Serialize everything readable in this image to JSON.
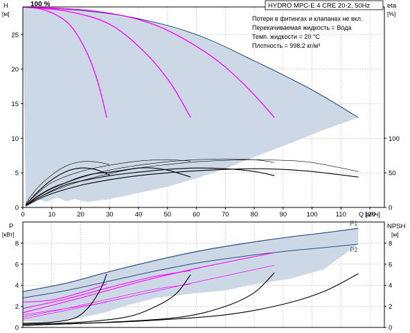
{
  "chart_data": [
    {
      "type": "line",
      "panel": "head-efficiency",
      "title": "HYDRO MPC-E 4 CRE 20-2, 50Hz",
      "notes": [
        "Потери в фитингах и клапанах не вкл.",
        "Перекачиваемая жидкость = Вода",
        "Темп. жидкости = 20 °C",
        "Плотность = 998.2 кг/м³"
      ],
      "speed_label": "100 %",
      "xlabel": "Q [м³/ч]",
      "ylabel_left": [
        "H",
        "[м]"
      ],
      "ylabel_right": [
        "eta",
        "[%]"
      ],
      "xlim": [
        0,
        125
      ],
      "ylim_left": [
        0,
        29
      ],
      "ylim_right": [
        0,
        290
      ],
      "x_ticks": [
        "0",
        "10",
        "20",
        "30",
        "40",
        "50",
        "60",
        "70",
        "80",
        "90",
        "100",
        "110",
        "120"
      ],
      "y_ticks_left": [
        "0",
        "5",
        "10",
        "15",
        "20",
        "25"
      ],
      "y_ticks_right": [
        "0",
        "50",
        "100"
      ],
      "grid": true,
      "envelope": {
        "upper": [
          [
            0,
            29
          ],
          [
            20,
            28.5
          ],
          [
            40,
            27.3
          ],
          [
            60,
            25
          ],
          [
            80,
            21.2
          ],
          [
            100,
            17
          ],
          [
            116,
            13
          ]
        ],
        "lower": [
          [
            116,
            13
          ],
          [
            104,
            11.2
          ],
          [
            92,
            9.2
          ],
          [
            80,
            7.3
          ],
          [
            70,
            5.6
          ],
          [
            60,
            4.2
          ],
          [
            50,
            3
          ],
          [
            40,
            2.1
          ],
          [
            30,
            1.2
          ],
          [
            22,
            0.8
          ],
          [
            18,
            1.2
          ],
          [
            15,
            0.9
          ],
          [
            12,
            1.4
          ],
          [
            8,
            0.8
          ],
          [
            5,
            1.3
          ],
          [
            1,
            0.4
          ],
          [
            0,
            29
          ]
        ]
      },
      "head_series": [
        {
          "values": [
            [
              0,
              29
            ],
            [
              8,
              28.5
            ],
            [
              16,
              26.5
            ],
            [
              22,
              22.5
            ],
            [
              26,
              18
            ],
            [
              29,
              13
            ]
          ]
        },
        {
          "values": [
            [
              0,
              29
            ],
            [
              15,
              28.4
            ],
            [
              30,
              26.5
            ],
            [
              42,
              22.5
            ],
            [
              51,
              18
            ],
            [
              58,
              13
            ]
          ]
        },
        {
          "values": [
            [
              0,
              29
            ],
            [
              25,
              28.4
            ],
            [
              45,
              26.5
            ],
            [
              63,
              22.5
            ],
            [
              76,
              18
            ],
            [
              87,
              13
            ]
          ]
        }
      ],
      "efficiency_series": [
        {
          "values": [
            [
              1,
              4
            ],
            [
              5,
              22
            ],
            [
              10,
              40
            ],
            [
              15,
              52
            ],
            [
              20,
              57
            ],
            [
              25,
              55
            ],
            [
              30,
              47
            ]
          ]
        },
        {
          "values": [
            [
              1,
              3
            ],
            [
              5,
              16
            ],
            [
              10,
              28
            ],
            [
              15,
              36
            ],
            [
              20,
              44
            ],
            [
              25,
              49
            ],
            [
              30,
              51
            ],
            [
              35,
              54
            ],
            [
              40,
              57
            ],
            [
              45,
              57
            ],
            [
              50,
              54
            ],
            [
              55,
              48
            ],
            [
              58,
              44
            ]
          ]
        },
        {
          "values": [
            [
              1,
              3
            ],
            [
              5,
              13
            ],
            [
              10,
              24
            ],
            [
              15,
              33
            ],
            [
              20,
              38
            ],
            [
              30,
              46
            ],
            [
              40,
              51
            ],
            [
              50,
              55
            ],
            [
              60,
              57
            ],
            [
              70,
              56
            ],
            [
              80,
              52
            ],
            [
              87,
              46
            ]
          ]
        },
        {
          "values": [
            [
              1,
              2
            ],
            [
              5,
              11
            ],
            [
              10,
              20
            ],
            [
              20,
              32
            ],
            [
              30,
              40
            ],
            [
              40,
              46
            ],
            [
              50,
              50
            ],
            [
              60,
              53
            ],
            [
              70,
              55
            ],
            [
              80,
              56
            ],
            [
              90,
              55
            ],
            [
              100,
              52
            ],
            [
              116,
              44
            ]
          ]
        },
        {
          "values": [
            [
              1,
              6
            ],
            [
              5,
              28
            ],
            [
              10,
              47
            ],
            [
              15,
              60
            ],
            [
              20,
              66
            ],
            [
              25,
              66
            ],
            [
              30,
              62
            ]
          ]
        },
        {
          "values": [
            [
              1,
              4
            ],
            [
              5,
              20
            ],
            [
              10,
              36
            ],
            [
              20,
              52
            ],
            [
              30,
              61
            ],
            [
              40,
              67
            ],
            [
              50,
              69
            ],
            [
              58,
              67
            ]
          ]
        },
        {
          "values": [
            [
              1,
              3
            ],
            [
              5,
              15
            ],
            [
              10,
              27
            ],
            [
              20,
              43
            ],
            [
              30,
              54
            ],
            [
              40,
              61
            ],
            [
              50,
              66
            ],
            [
              60,
              69
            ],
            [
              70,
              70
            ],
            [
              80,
              69
            ],
            [
              87,
              65
            ]
          ]
        },
        {
          "values": [
            [
              1,
              3
            ],
            [
              5,
              13
            ],
            [
              10,
              23
            ],
            [
              20,
              38
            ],
            [
              30,
              49
            ],
            [
              40,
              57
            ],
            [
              50,
              62
            ],
            [
              60,
              66
            ],
            [
              70,
              68
            ],
            [
              80,
              69
            ],
            [
              90,
              68
            ],
            [
              100,
              65
            ],
            [
              116,
              52
            ]
          ]
        }
      ]
    },
    {
      "type": "line",
      "panel": "power-npsh",
      "ylabel_left": [
        "P",
        "[кВт]"
      ],
      "ylabel_right": [
        "NPSH",
        "[м]"
      ],
      "xlim": [
        0,
        125
      ],
      "ylim_left": [
        0,
        10
      ],
      "ylim_right": [
        0,
        10
      ],
      "y_ticks_left": [
        "0",
        "2",
        "4",
        "6",
        "8"
      ],
      "y_ticks_right": [
        "0",
        "2",
        "4",
        "6",
        "8"
      ],
      "grid": true,
      "p1_label": "P1",
      "p2_label": "P2",
      "p1_envelope": [
        [
          0,
          3.4
        ],
        [
          15,
          4.2
        ],
        [
          30,
          5.3
        ],
        [
          45,
          6.3
        ],
        [
          60,
          7.2
        ],
        [
          75,
          7.9
        ],
        [
          90,
          8.5
        ],
        [
          105,
          9.0
        ],
        [
          116,
          9.4
        ]
      ],
      "p2_envelope": [
        [
          0,
          2.8
        ],
        [
          15,
          3.5
        ],
        [
          30,
          4.4
        ],
        [
          45,
          5.3
        ],
        [
          60,
          6.1
        ],
        [
          75,
          6.7
        ],
        [
          90,
          7.2
        ],
        [
          105,
          7.6
        ],
        [
          116,
          7.9
        ]
      ],
      "envelope_lower": [
        [
          116,
          7.9
        ],
        [
          104,
          5.5
        ],
        [
          92,
          4.6
        ],
        [
          80,
          4.1
        ],
        [
          70,
          3.5
        ],
        [
          58,
          3.2
        ],
        [
          46,
          2.8
        ],
        [
          36,
          2.1
        ],
        [
          28,
          1.4
        ],
        [
          20,
          0.9
        ],
        [
          10,
          0.5
        ],
        [
          0,
          0.6
        ]
      ],
      "power_series": [
        {
          "values": [
            [
              0,
              2.4
            ],
            [
              10,
              2.6
            ],
            [
              20,
              3.3
            ],
            [
              29,
              4.1
            ]
          ]
        },
        {
          "values": [
            [
              0,
              1.8
            ],
            [
              15,
              2.7
            ],
            [
              30,
              3.8
            ],
            [
              45,
              4.8
            ],
            [
              58,
              5.4
            ]
          ]
        },
        {
          "values": [
            [
              0,
              1.4
            ],
            [
              20,
              2.8
            ],
            [
              40,
              4.3
            ],
            [
              60,
              5.6
            ],
            [
              87,
              7.1
            ]
          ]
        },
        {
          "values": [
            [
              0,
              1.2
            ],
            [
              10,
              1.6
            ],
            [
              20,
              2.0
            ],
            [
              29,
              2.4
            ]
          ]
        },
        {
          "values": [
            [
              0,
              1.0
            ],
            [
              15,
              1.8
            ],
            [
              30,
              2.7
            ],
            [
              45,
              3.6
            ],
            [
              58,
              4.1
            ]
          ]
        },
        {
          "values": [
            [
              0,
              0.8
            ],
            [
              20,
              1.9
            ],
            [
              40,
              3.1
            ],
            [
              60,
              4.3
            ],
            [
              87,
              5.9
            ]
          ]
        }
      ],
      "npsh_series": [
        {
          "values": [
            [
              0,
              0.4
            ],
            [
              10,
              0.5
            ],
            [
              18,
              0.9
            ],
            [
              23,
              2.0
            ],
            [
              27,
              3.7
            ],
            [
              29,
              5.1
            ]
          ]
        },
        {
          "values": [
            [
              0,
              0.3
            ],
            [
              20,
              0.5
            ],
            [
              36,
              1.0
            ],
            [
              46,
              2.0
            ],
            [
              53,
              3.2
            ],
            [
              58,
              5.0
            ]
          ]
        },
        {
          "values": [
            [
              0,
              0.2
            ],
            [
              30,
              0.5
            ],
            [
              55,
              1.0
            ],
            [
              70,
              2.0
            ],
            [
              80,
              3.3
            ],
            [
              87,
              5.2
            ]
          ]
        },
        {
          "values": [
            [
              0,
              0.2
            ],
            [
              40,
              0.6
            ],
            [
              70,
              1.2
            ],
            [
              90,
              2.2
            ],
            [
              104,
              3.4
            ],
            [
              116,
              5.1
            ]
          ]
        }
      ]
    }
  ]
}
